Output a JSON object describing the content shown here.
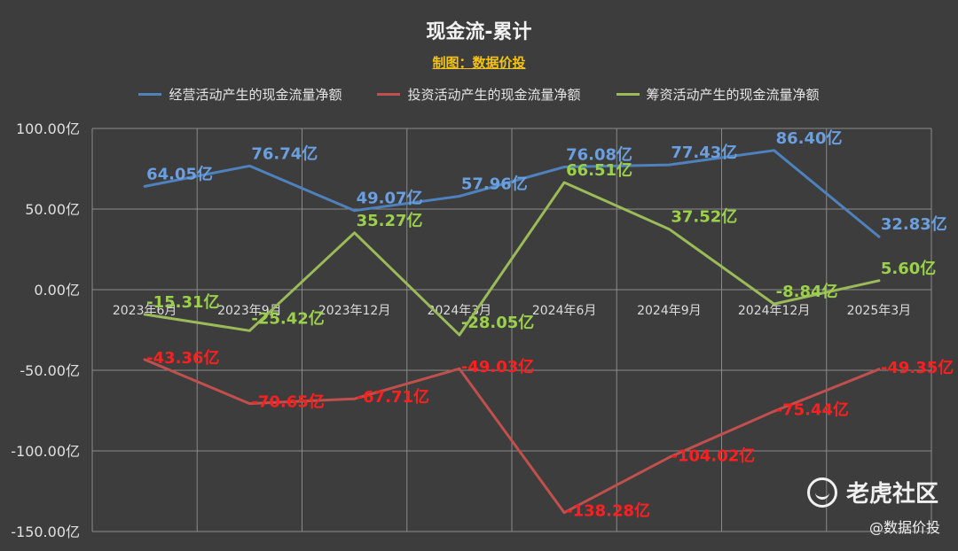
{
  "chart_data": {
    "type": "line",
    "title": "现金流-累计",
    "subtitle": "制图：数据价投",
    "categories": [
      "2023年6月",
      "2023年9月",
      "2023年12月",
      "2024年3月",
      "2024年6月",
      "2024年9月",
      "2024年12月",
      "2025年3月"
    ],
    "series": [
      {
        "name": "经营活动产生的现金流量净额",
        "values": [
          64.05,
          76.74,
          49.07,
          57.96,
          76.08,
          77.43,
          86.4,
          32.83
        ],
        "labels": [
          "64.05亿",
          "76.74亿",
          "49.07亿",
          "57.96亿",
          "76.08亿",
          "77.43亿",
          "86.40亿",
          "32.83亿"
        ],
        "color": "#4f81bd",
        "labelColor": "#6a9fe0"
      },
      {
        "name": "投资活动产生的现金流量净额",
        "values": [
          -43.36,
          -70.65,
          -67.71,
          -49.03,
          -138.28,
          -104.02,
          -75.44,
          -49.35
        ],
        "labels": [
          "-43.36亿",
          "-70.65亿",
          "-67.71亿",
          "-49.03亿",
          "-138.28亿",
          "-104.02亿",
          "-75.44亿",
          "-49.35亿"
        ],
        "color": "#c0504d",
        "labelColor": "#ff1f1f"
      },
      {
        "name": "筹资活动产生的现金流量净额",
        "values": [
          -15.31,
          -25.42,
          35.27,
          -28.05,
          66.51,
          37.52,
          -8.84,
          5.6
        ],
        "labels": [
          "-15.31亿",
          "-25.42亿",
          "35.27亿",
          "-28.05亿",
          "66.51亿",
          "37.52亿",
          "-8.84亿",
          "5.60亿"
        ],
        "color": "#9bbb59",
        "labelColor": "#9bd14a"
      }
    ],
    "yticks": [
      100,
      50,
      0,
      -50,
      -100,
      -150
    ],
    "ytick_labels": [
      "100.00亿",
      "50.00亿",
      "0.00亿",
      "-50.00亿",
      "-100.00亿",
      "-150.00亿"
    ],
    "ylim": [
      -150,
      100
    ],
    "grid": true,
    "legend": "top"
  },
  "watermark": {
    "brand": "老虎社区",
    "handle": "@数据价投"
  }
}
